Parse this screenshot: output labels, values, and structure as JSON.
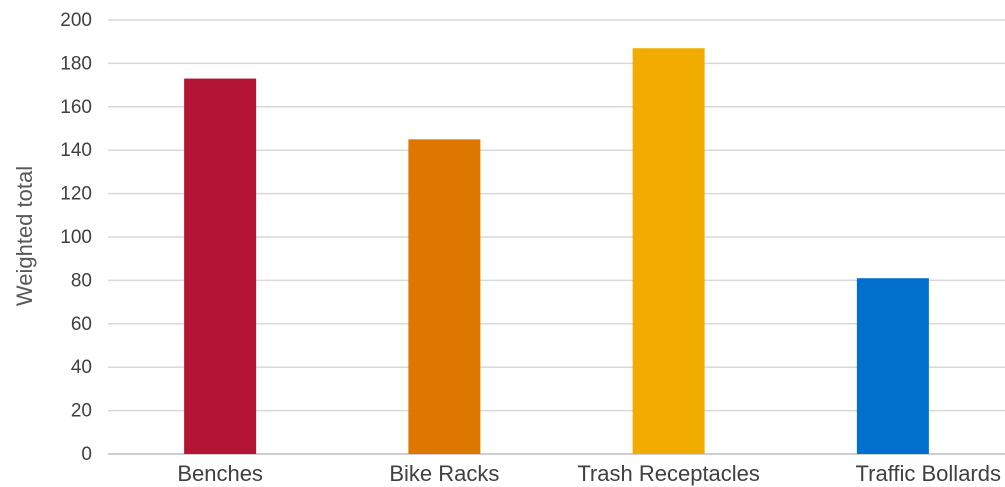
{
  "chart_data": {
    "type": "bar",
    "categories": [
      "Benches",
      "Bike Racks",
      "Trash Receptacles",
      "Traffic Bollards"
    ],
    "values": [
      173,
      145,
      187,
      81
    ],
    "colors": [
      "#b31433",
      "#dd7700",
      "#f2ac00",
      "#0070cc"
    ],
    "ylabel": "Weighted total",
    "xlabel": "",
    "ylim": [
      0,
      200
    ],
    "yticks": [
      0,
      20,
      40,
      60,
      80,
      100,
      120,
      140,
      160,
      180,
      200
    ],
    "grid": true,
    "legend": "none"
  }
}
